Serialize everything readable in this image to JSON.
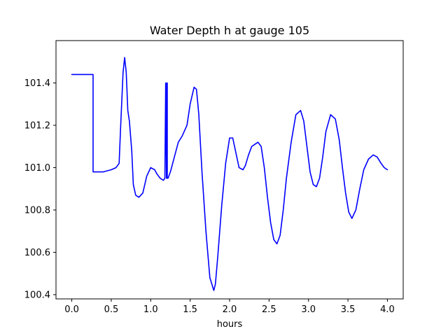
{
  "chart_data": {
    "type": "line",
    "title": "Water Depth h at gauge 105",
    "xlabel": "hours",
    "ylabel": "",
    "xlim": [
      -0.2,
      4.2
    ],
    "ylim": [
      100.38,
      101.6
    ],
    "grid": false,
    "legend": "none",
    "x_ticks": [
      0.0,
      0.5,
      1.0,
      1.5,
      2.0,
      2.5,
      3.0,
      3.5,
      4.0
    ],
    "x_tick_labels": [
      "0.0",
      "0.5",
      "1.0",
      "1.5",
      "2.0",
      "2.5",
      "3.0",
      "3.5",
      "4.0"
    ],
    "y_ticks": [
      100.4,
      100.6,
      100.8,
      101.0,
      101.2,
      101.4
    ],
    "y_tick_labels": [
      "100.4",
      "100.6",
      "100.8",
      "101.0",
      "101.2",
      "101.4"
    ],
    "colors": {
      "line": "#0000ff",
      "axes": "#000000",
      "background": "#ffffff"
    },
    "series": [
      {
        "x": [
          0.0,
          0.27,
          0.27,
          0.3,
          0.4,
          0.5,
          0.56,
          0.6,
          0.62,
          0.65,
          0.67,
          0.69,
          0.71,
          0.73,
          0.76,
          0.78,
          0.81,
          0.85,
          0.9,
          0.95,
          1.0,
          1.05,
          1.08,
          1.12,
          1.16,
          1.18,
          1.19,
          1.2,
          1.2,
          1.205,
          1.21,
          1.21,
          1.22,
          1.25,
          1.3,
          1.35,
          1.4,
          1.46,
          1.5,
          1.55,
          1.58,
          1.61,
          1.65,
          1.7,
          1.75,
          1.8,
          1.82,
          1.85,
          1.9,
          1.95,
          2.0,
          2.04,
          2.08,
          2.12,
          2.17,
          2.2,
          2.24,
          2.28,
          2.32,
          2.36,
          2.4,
          2.44,
          2.48,
          2.52,
          2.56,
          2.6,
          2.64,
          2.68,
          2.72,
          2.78,
          2.84,
          2.9,
          2.94,
          2.98,
          3.02,
          3.06,
          3.1,
          3.14,
          3.18,
          3.22,
          3.28,
          3.34,
          3.39,
          3.43,
          3.47,
          3.51,
          3.55,
          3.6,
          3.65,
          3.7,
          3.76,
          3.82,
          3.87,
          3.92,
          3.96,
          4.0
        ],
        "y": [
          101.44,
          101.44,
          100.98,
          100.98,
          100.98,
          100.99,
          101.0,
          101.02,
          101.2,
          101.45,
          101.52,
          101.45,
          101.27,
          101.22,
          101.08,
          100.92,
          100.87,
          100.86,
          100.88,
          100.96,
          101.0,
          100.99,
          100.97,
          100.95,
          100.94,
          100.95,
          101.4,
          100.95,
          101.4,
          100.96,
          101.4,
          100.95,
          100.95,
          100.98,
          101.05,
          101.12,
          101.15,
          101.2,
          101.3,
          101.38,
          101.37,
          101.25,
          100.98,
          100.7,
          100.48,
          100.42,
          100.45,
          100.58,
          100.82,
          101.02,
          101.14,
          101.14,
          101.07,
          101.0,
          100.99,
          101.01,
          101.06,
          101.1,
          101.11,
          101.12,
          101.1,
          101.0,
          100.86,
          100.74,
          100.66,
          100.64,
          100.68,
          100.8,
          100.95,
          101.12,
          101.25,
          101.27,
          101.22,
          101.1,
          100.98,
          100.92,
          100.91,
          100.95,
          101.05,
          101.17,
          101.25,
          101.23,
          101.13,
          101.0,
          100.88,
          100.79,
          100.76,
          100.8,
          100.9,
          100.99,
          101.04,
          101.06,
          101.05,
          101.02,
          101.0,
          100.99
        ]
      }
    ]
  }
}
